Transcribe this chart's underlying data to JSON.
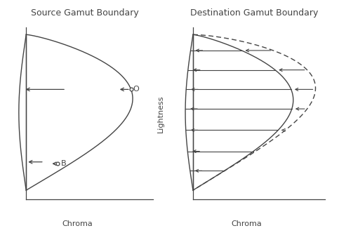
{
  "title_left": "Source Gamut Boundary",
  "title_right": "Destination Gamut Boundary",
  "xlabel": "Chroma",
  "ylabel": "Lightness",
  "bg_color": "#ffffff",
  "line_color": "#444444",
  "fontsize_title": 9,
  "fontsize_label": 8,
  "fontsize_annot": 8
}
